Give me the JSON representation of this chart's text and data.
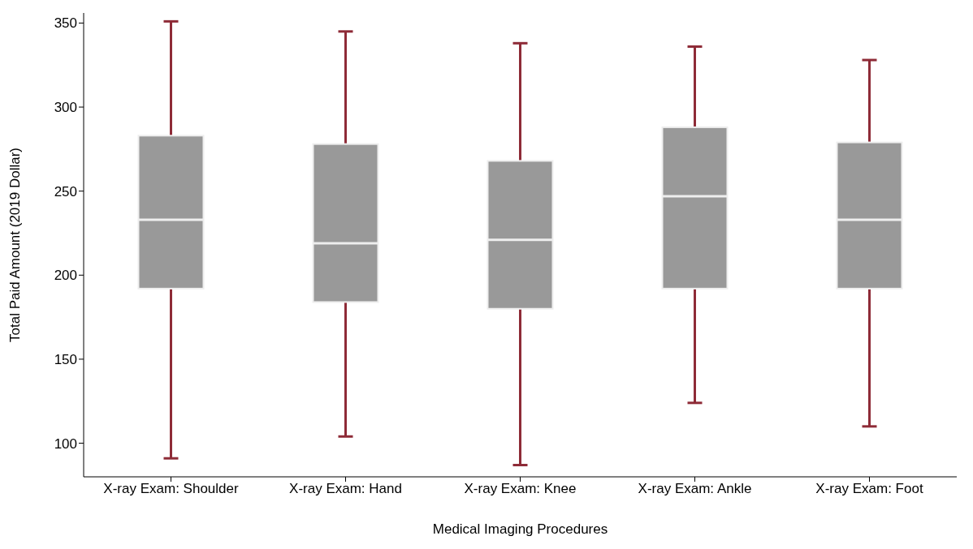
{
  "chart_data": {
    "type": "box",
    "xlabel": "Medical Imaging Procedures",
    "ylabel": "Total Paid Amount (2019 Dollar)",
    "categories": [
      "X-ray Exam: Shoulder",
      "X-ray Exam: Hand",
      "X-ray Exam: Knee",
      "X-ray Exam: Ankle",
      "X-ray Exam: Foot"
    ],
    "boxes": [
      {
        "low": 91,
        "q1": 192,
        "median": 233,
        "q3": 283,
        "high": 351
      },
      {
        "low": 104,
        "q1": 184,
        "median": 219,
        "q3": 278,
        "high": 345
      },
      {
        "low": 87,
        "q1": 180,
        "median": 221,
        "q3": 268,
        "high": 338
      },
      {
        "low": 124,
        "q1": 192,
        "median": 247,
        "q3": 288,
        "high": 336
      },
      {
        "low": 110,
        "q1": 192,
        "median": 233,
        "q3": 279,
        "high": 328
      }
    ],
    "color": "#999999",
    "ylim": [
      80,
      356
    ],
    "yticks": [
      100,
      150,
      200,
      250,
      300,
      350
    ],
    "grid": false
  }
}
